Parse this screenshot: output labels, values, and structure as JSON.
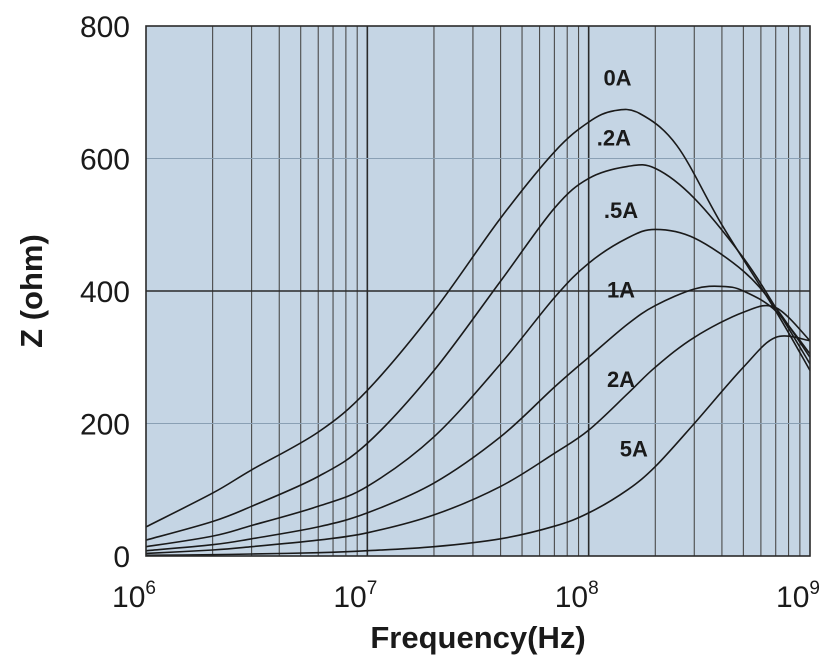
{
  "chart_data": {
    "type": "line",
    "xscale": "log",
    "xlabel": "Frequency(Hz)",
    "ylabel": "Z (ohm)",
    "xlim": [
      1000000,
      1000000000
    ],
    "ylim": [
      0,
      800
    ],
    "grid": true,
    "background_color": "#c5d5e4",
    "line_color": "#1a1a1a",
    "x_ticks": [
      {
        "value": 1000000,
        "base": "10",
        "exp": "6"
      },
      {
        "value": 10000000,
        "base": "10",
        "exp": "7"
      },
      {
        "value": 100000000,
        "base": "10",
        "exp": "8"
      },
      {
        "value": 1000000000,
        "base": "10",
        "exp": "9"
      }
    ],
    "y_ticks": [
      {
        "value": 0,
        "label": "0"
      },
      {
        "value": 200,
        "label": "200"
      },
      {
        "value": 400,
        "label": "400"
      },
      {
        "value": 600,
        "label": "600"
      },
      {
        "value": 800,
        "label": "800"
      }
    ],
    "series": [
      {
        "name": "0A",
        "label_at": [
          135000000,
          710
        ],
        "x": [
          1000000,
          2000000,
          3000000,
          6000000,
          10000000,
          20000000,
          40000000,
          70000000,
          100000000,
          130000000,
          170000000,
          250000000,
          400000000,
          700000000,
          1000000000
        ],
        "y": [
          44,
          95,
          130,
          187,
          250,
          370,
          510,
          610,
          655,
          672,
          668,
          620,
          500,
          370,
          280
        ]
      },
      {
        "name": ".2A",
        "label_at": [
          130000000,
          620
        ],
        "x": [
          1000000,
          2000000,
          3000000,
          6000000,
          10000000,
          20000000,
          40000000,
          70000000,
          100000000,
          150000000,
          200000000,
          300000000,
          500000000,
          700000000,
          1000000000
        ],
        "y": [
          24,
          52,
          75,
          120,
          170,
          280,
          415,
          525,
          570,
          588,
          585,
          540,
          450,
          375,
          290
        ]
      },
      {
        "name": ".5A",
        "label_at": [
          140000000,
          510
        ],
        "x": [
          1000000,
          2000000,
          3000000,
          6000000,
          10000000,
          20000000,
          40000000,
          70000000,
          100000000,
          150000000,
          200000000,
          300000000,
          500000000,
          700000000,
          1000000000
        ],
        "y": [
          14,
          30,
          46,
          75,
          105,
          180,
          290,
          390,
          442,
          480,
          493,
          480,
          430,
          375,
          300
        ]
      },
      {
        "name": "1A",
        "label_at": [
          140000000,
          390
        ],
        "x": [
          1000000,
          2000000,
          3000000,
          6000000,
          10000000,
          20000000,
          40000000,
          70000000,
          100000000,
          150000000,
          200000000,
          300000000,
          400000000,
          500000000,
          700000000,
          1000000000
        ],
        "y": [
          8,
          17,
          26,
          44,
          65,
          110,
          180,
          255,
          300,
          350,
          378,
          403,
          407,
          400,
          370,
          305
        ]
      },
      {
        "name": "2A",
        "label_at": [
          140000000,
          255
        ],
        "x": [
          1000000,
          2000000,
          3000000,
          6000000,
          10000000,
          20000000,
          40000000,
          70000000,
          100000000,
          150000000,
          200000000,
          300000000,
          500000000,
          700000000,
          1000000000
        ],
        "y": [
          4,
          9,
          14,
          24,
          35,
          62,
          105,
          155,
          190,
          245,
          285,
          330,
          368,
          375,
          325
        ]
      },
      {
        "name": "5A",
        "label_at": [
          160000000,
          150
        ],
        "x": [
          1000000,
          2000000,
          3000000,
          6000000,
          10000000,
          20000000,
          40000000,
          70000000,
          100000000,
          150000000,
          200000000,
          300000000,
          500000000,
          700000000,
          1000000000
        ],
        "y": [
          1,
          2,
          3,
          5,
          8,
          14,
          26,
          45,
          65,
          100,
          135,
          200,
          285,
          330,
          325
        ]
      }
    ]
  }
}
